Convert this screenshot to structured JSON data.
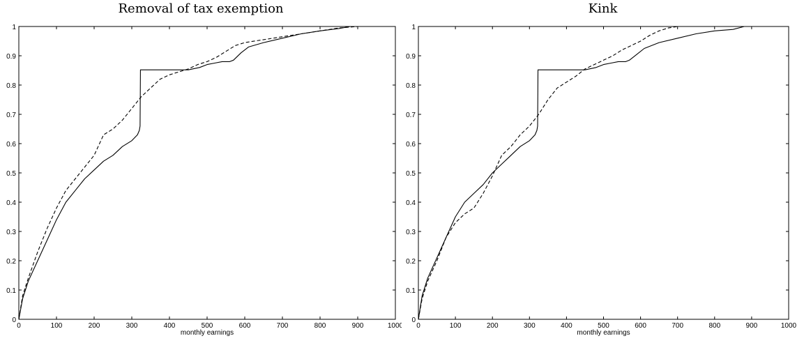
{
  "chart_data": [
    {
      "type": "line",
      "title": "Removal of tax exemption",
      "xlabel": "monthly earnings",
      "ylabel": "",
      "xlim": [
        0,
        1000
      ],
      "ylim": [
        0,
        1
      ],
      "xticks": [
        0,
        100,
        200,
        300,
        400,
        500,
        600,
        700,
        800,
        900,
        1000
      ],
      "yticks": [
        0,
        0.1,
        0.2,
        0.3,
        0.4,
        0.5,
        0.6,
        0.7,
        0.8,
        0.9,
        1
      ],
      "grid": false,
      "series": [
        {
          "style": "solid",
          "color": "#000000",
          "x": [
            0,
            10,
            25,
            50,
            75,
            100,
            125,
            150,
            175,
            200,
            225,
            250,
            275,
            300,
            315,
            320,
            322,
            323,
            350,
            400,
            450,
            480,
            500,
            520,
            540,
            560,
            570,
            590,
            610,
            650,
            700,
            750,
            800,
            850,
            880,
            900,
            1000
          ],
          "y": [
            0,
            0.07,
            0.13,
            0.2,
            0.27,
            0.34,
            0.4,
            0.44,
            0.48,
            0.51,
            0.54,
            0.56,
            0.59,
            0.61,
            0.63,
            0.645,
            0.66,
            0.852,
            0.852,
            0.852,
            0.852,
            0.86,
            0.87,
            0.875,
            0.88,
            0.88,
            0.885,
            0.91,
            0.93,
            0.945,
            0.96,
            0.975,
            0.985,
            0.993,
            1.0,
            1.0,
            1.0
          ]
        },
        {
          "style": "dashed",
          "color": "#000000",
          "x": [
            0,
            10,
            25,
            50,
            75,
            100,
            125,
            150,
            175,
            200,
            225,
            250,
            275,
            300,
            325,
            350,
            375,
            400,
            425,
            450,
            475,
            500,
            525,
            550,
            575,
            600,
            650,
            700,
            750,
            800,
            850,
            900,
            1000
          ],
          "y": [
            0,
            0.08,
            0.14,
            0.23,
            0.31,
            0.38,
            0.44,
            0.48,
            0.52,
            0.56,
            0.63,
            0.65,
            0.68,
            0.72,
            0.76,
            0.79,
            0.82,
            0.835,
            0.845,
            0.855,
            0.87,
            0.88,
            0.895,
            0.915,
            0.935,
            0.945,
            0.955,
            0.965,
            0.975,
            0.985,
            0.995,
            1.0,
            1.0
          ]
        }
      ]
    },
    {
      "type": "line",
      "title": "Kink",
      "xlabel": "monthly earnings",
      "ylabel": "",
      "xlim": [
        0,
        1000
      ],
      "ylim": [
        0,
        1
      ],
      "xticks": [
        0,
        100,
        200,
        300,
        400,
        500,
        600,
        700,
        800,
        900,
        1000
      ],
      "yticks": [
        0,
        0.1,
        0.2,
        0.3,
        0.4,
        0.5,
        0.6,
        0.7,
        0.8,
        0.9,
        1
      ],
      "grid": false,
      "series": [
        {
          "style": "solid",
          "color": "#000000",
          "x": [
            0,
            10,
            25,
            50,
            75,
            100,
            125,
            150,
            175,
            200,
            225,
            250,
            275,
            300,
            315,
            320,
            322,
            323,
            350,
            400,
            450,
            480,
            500,
            520,
            540,
            560,
            570,
            590,
            610,
            650,
            700,
            750,
            800,
            850,
            880,
            900,
            1000
          ],
          "y": [
            0,
            0.08,
            0.14,
            0.21,
            0.28,
            0.35,
            0.4,
            0.43,
            0.46,
            0.5,
            0.53,
            0.56,
            0.59,
            0.61,
            0.63,
            0.645,
            0.66,
            0.852,
            0.852,
            0.852,
            0.852,
            0.86,
            0.87,
            0.875,
            0.88,
            0.88,
            0.885,
            0.905,
            0.925,
            0.945,
            0.96,
            0.975,
            0.985,
            0.99,
            1.0,
            1.0,
            1.0
          ]
        },
        {
          "style": "dashed",
          "color": "#000000",
          "x": [
            0,
            10,
            25,
            50,
            75,
            100,
            125,
            150,
            175,
            200,
            225,
            250,
            275,
            300,
            325,
            350,
            375,
            400,
            425,
            450,
            475,
            500,
            525,
            550,
            575,
            600,
            625,
            650,
            675,
            700,
            750,
            800,
            900,
            1000
          ],
          "y": [
            0,
            0.07,
            0.13,
            0.2,
            0.28,
            0.33,
            0.36,
            0.38,
            0.43,
            0.49,
            0.56,
            0.59,
            0.63,
            0.66,
            0.7,
            0.75,
            0.79,
            0.81,
            0.83,
            0.855,
            0.87,
            0.885,
            0.9,
            0.92,
            0.935,
            0.95,
            0.97,
            0.985,
            0.995,
            1.0,
            1.0,
            1.0,
            1.0,
            1.0
          ]
        }
      ]
    }
  ]
}
